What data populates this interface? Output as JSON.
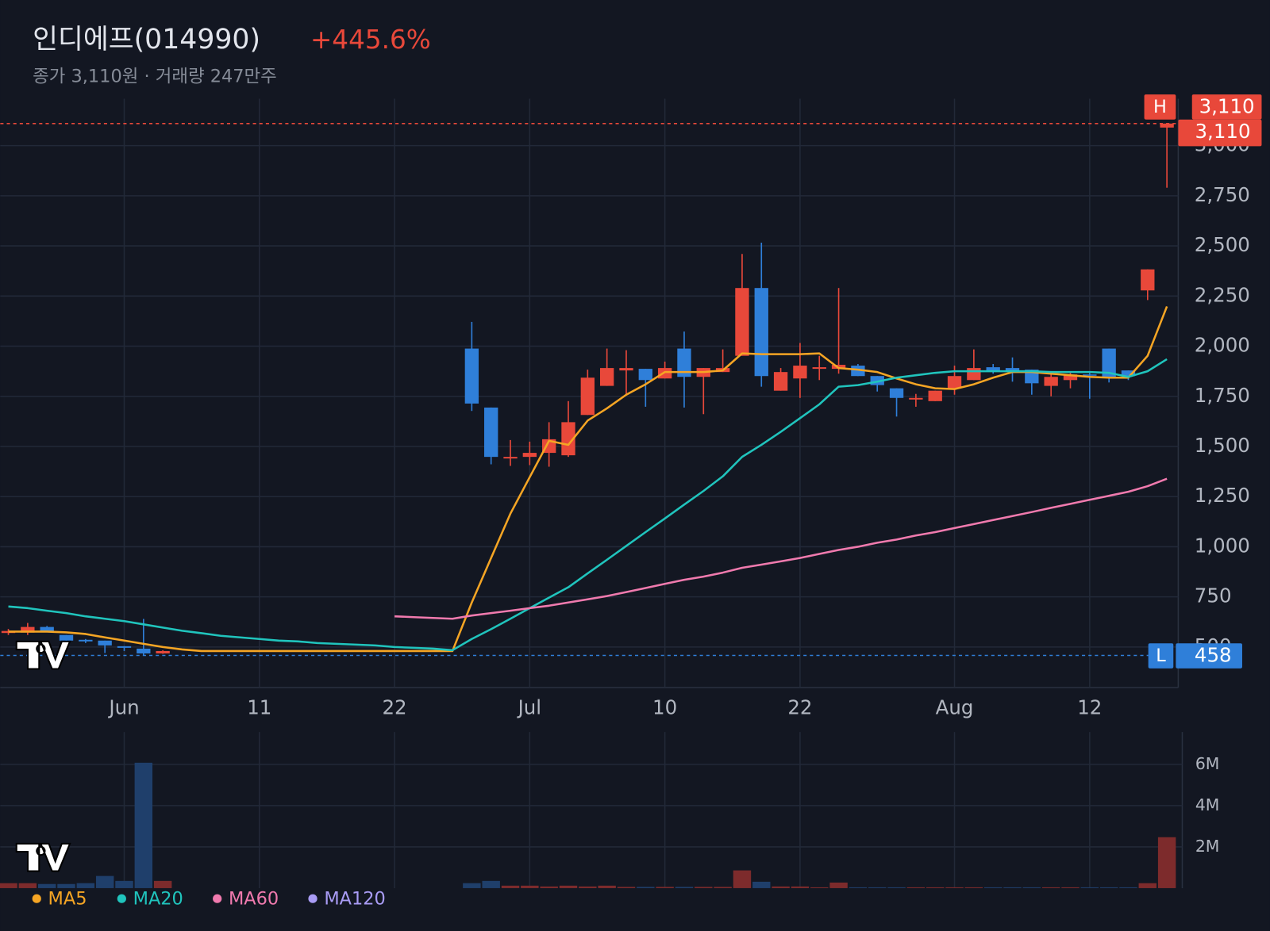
{
  "chart_data": [
    {
      "type": "candlestick",
      "title": "인디에프(014990)",
      "change": "+445.6%",
      "subtitle": "종가 3,110원 · 거래량 247만주",
      "categories": [
        null,
        null,
        null,
        null,
        null,
        null,
        "Jun",
        null,
        null,
        null,
        null,
        null,
        null,
        "11",
        null,
        null,
        null,
        null,
        null,
        null,
        "22",
        null,
        null,
        null,
        null,
        null,
        null,
        "Jul",
        null,
        null,
        null,
        null,
        null,
        null,
        "10",
        null,
        null,
        null,
        null,
        null,
        null,
        "22",
        null,
        null,
        null,
        null,
        null,
        null,
        null,
        "Aug",
        null,
        null,
        null,
        null,
        null,
        null,
        "12",
        null,
        null,
        null,
        null
      ],
      "open": [
        570,
        572,
        600,
        560,
        536,
        532,
        504,
        492,
        468,
        null,
        null,
        null,
        null,
        null,
        null,
        null,
        null,
        null,
        null,
        null,
        null,
        null,
        null,
        null,
        1988,
        1694,
        1440,
        1448,
        1468,
        1456,
        1657,
        1802,
        1879,
        1887,
        1839,
        1988,
        1847,
        1871,
        1952,
        2290,
        1778,
        1839,
        1887,
        1887,
        1903,
        1851,
        1790,
        1734,
        1726,
        1790,
        1831,
        1895,
        1891,
        1883,
        1802,
        1831,
        1859,
        1988,
        1879,
        2278,
        3090
      ],
      "high": [
        590,
        620,
        605,
        560,
        540,
        532,
        504,
        640,
        484,
        null,
        null,
        null,
        null,
        null,
        null,
        null,
        null,
        null,
        null,
        null,
        null,
        null,
        null,
        null,
        2121,
        1694,
        1532,
        1524,
        1621,
        1726,
        1883,
        1988,
        1980,
        1887,
        1923,
        2073,
        1891,
        1984,
        2460,
        2516,
        1891,
        2016,
        1952,
        2290,
        1911,
        1851,
        1790,
        1762,
        1778,
        1903,
        1984,
        1911,
        1944,
        1883,
        1863,
        1871,
        1867,
        1988,
        1879,
        2383,
        3110
      ],
      "low": [
        560,
        560,
        575,
        520,
        520,
        470,
        480,
        458,
        466,
        null,
        null,
        null,
        null,
        null,
        null,
        null,
        null,
        null,
        null,
        null,
        null,
        null,
        null,
        null,
        1677,
        1411,
        1403,
        1407,
        1399,
        1448,
        1657,
        1802,
        1762,
        1698,
        1839,
        1694,
        1661,
        1871,
        1952,
        1798,
        1778,
        1742,
        1831,
        1863,
        1851,
        1774,
        1649,
        1698,
        1726,
        1758,
        1831,
        1863,
        1823,
        1758,
        1750,
        1790,
        1738,
        1819,
        1831,
        2230,
        2790
      ],
      "close": [
        580,
        600,
        580,
        532,
        528,
        508,
        496,
        468,
        480,
        null,
        null,
        null,
        null,
        null,
        null,
        null,
        null,
        null,
        null,
        null,
        null,
        null,
        null,
        null,
        1714,
        1448,
        1448,
        1468,
        1536,
        1621,
        1843,
        1891,
        1891,
        1831,
        1891,
        1847,
        1891,
        1891,
        2290,
        1851,
        1871,
        1903,
        1895,
        1907,
        1851,
        1806,
        1742,
        1742,
        1778,
        1851,
        1891,
        1879,
        1879,
        1815,
        1847,
        1859,
        1855,
        1847,
        1851,
        2383,
        3110
      ],
      "up_color": "#e8483a",
      "down_color": "#2f7fd9",
      "series": [
        {
          "name": "MA5",
          "color": "#f5a524",
          "values": [
            577,
            577,
            577,
            573,
            565,
            548,
            532,
            516,
            500,
            488,
            480,
            480,
            480,
            480,
            480,
            480,
            480,
            480,
            480,
            480,
            480,
            480,
            480,
            480,
            722,
            944,
            1165,
            1347,
            1528,
            1508,
            1629,
            1690,
            1758,
            1810,
            1871,
            1871,
            1871,
            1879,
            1964,
            1960,
            1960,
            1960,
            1964,
            1891,
            1883,
            1871,
            1839,
            1810,
            1790,
            1786,
            1810,
            1843,
            1871,
            1871,
            1863,
            1855,
            1847,
            1843,
            1843,
            1952,
            2198
          ]
        },
        {
          "name": "MA20",
          "color": "#20c4bd",
          "values": [
            702,
            694,
            681,
            669,
            653,
            641,
            629,
            613,
            597,
            581,
            569,
            556,
            548,
            540,
            532,
            528,
            520,
            516,
            512,
            508,
            500,
            496,
            492,
            484,
            540,
            589,
            641,
            694,
            746,
            798,
            867,
            935,
            1004,
            1073,
            1141,
            1210,
            1278,
            1351,
            1448,
            1508,
            1573,
            1641,
            1710,
            1798,
            1806,
            1823,
            1843,
            1855,
            1867,
            1875,
            1875,
            1875,
            1875,
            1875,
            1871,
            1871,
            1871,
            1867,
            1847,
            1875,
            1935
          ]
        },
        {
          "name": "MA60",
          "color": "#f07aae",
          "values": [
            null,
            null,
            null,
            null,
            null,
            null,
            null,
            null,
            null,
            null,
            null,
            null,
            null,
            null,
            null,
            null,
            null,
            null,
            null,
            null,
            653,
            649,
            645,
            641,
            657,
            669,
            681,
            694,
            706,
            722,
            738,
            754,
            774,
            794,
            815,
            835,
            851,
            871,
            895,
            911,
            927,
            944,
            964,
            984,
            1000,
            1020,
            1036,
            1056,
            1073,
            1093,
            1113,
            1133,
            1153,
            1173,
            1194,
            1214,
            1234,
            1254,
            1274,
            1302,
            1339
          ]
        },
        {
          "name": "MA120",
          "color": "#a99cf5"
        }
      ],
      "ylim": [
        298,
        3234
      ],
      "yticks": [
        500,
        750,
        {
          "value": 1000,
          "label": "1,000"
        },
        {
          "value": 1250,
          "label": "1,250"
        },
        {
          "value": 1500,
          "label": "1,500"
        },
        {
          "value": 1750,
          "label": "1,750"
        },
        {
          "value": 2000,
          "label": "2,000"
        },
        {
          "value": 2250,
          "label": "2,250"
        },
        {
          "value": 2500,
          "label": "2,500"
        },
        {
          "value": 2750,
          "label": "2,750"
        },
        {
          "value": 3000,
          "label": "3,000"
        }
      ],
      "grid": true,
      "high_marker": {
        "label": "H",
        "value": 3110,
        "value_label": "3,110"
      },
      "last_price": {
        "value": 3110,
        "value_label": "3,110"
      },
      "low_marker": {
        "label": "L",
        "value": 458
      }
    },
    {
      "type": "bar",
      "values": [
        0.24,
        0.24,
        0.2,
        0.2,
        0.24,
        0.59,
        0.35,
        6.08,
        0.35,
        null,
        null,
        null,
        null,
        null,
        null,
        null,
        null,
        null,
        null,
        null,
        null,
        null,
        null,
        null,
        0.24,
        0.35,
        0.12,
        0.12,
        0.08,
        0.12,
        0.08,
        0.12,
        0.06,
        0.06,
        0.06,
        0.06,
        0.06,
        0.06,
        0.86,
        0.31,
        0.08,
        0.08,
        0.04,
        0.27,
        0.04,
        0.04,
        0.04,
        0.04,
        0.04,
        0.04,
        0.04,
        0.04,
        0.04,
        0.04,
        0.04,
        0.04,
        0.04,
        0.04,
        0.04,
        0.24,
        2.47
      ],
      "up_color": "#7d2b2c",
      "down_color": "#1f3f6b",
      "ylim": [
        0,
        7.57
      ],
      "yticks": [
        {
          "value": 2,
          "label": "2M"
        },
        {
          "value": 4,
          "label": "4M"
        },
        {
          "value": 6,
          "label": "6M"
        }
      ],
      "grid": true
    }
  ]
}
